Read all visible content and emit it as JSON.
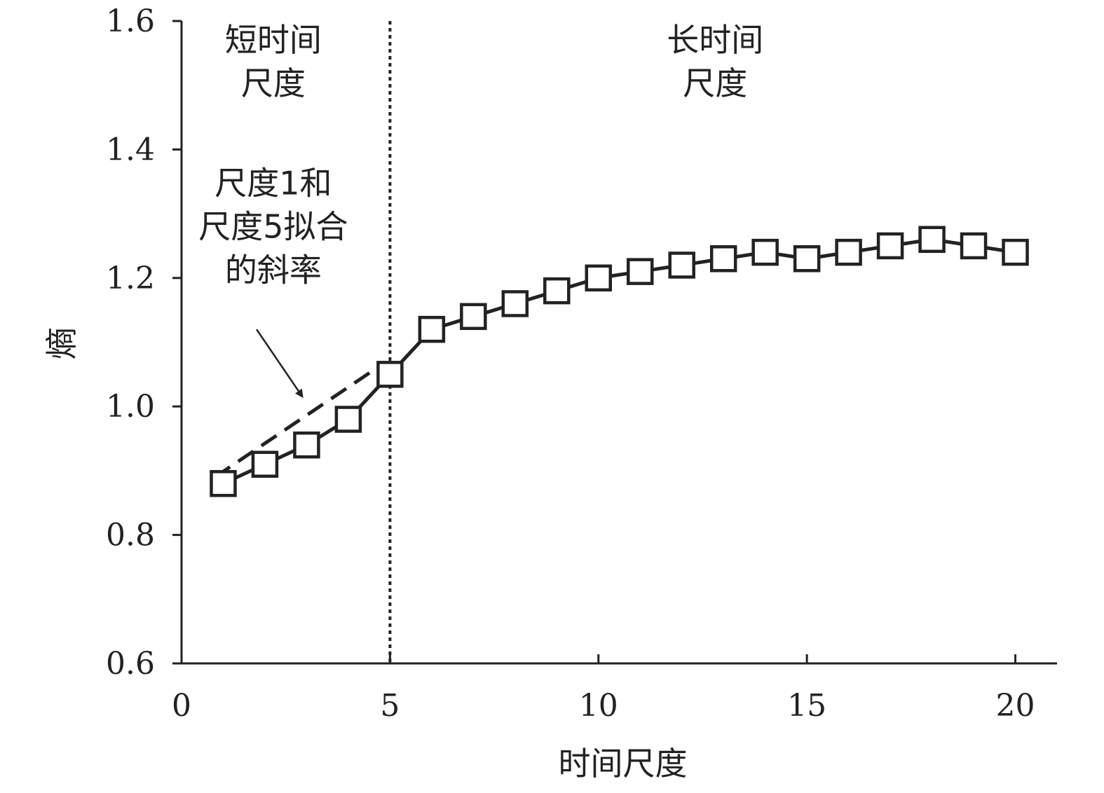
{
  "chart_data": {
    "type": "line",
    "title": "",
    "xlabel": "时间尺度",
    "ylabel": "熵",
    "xlim": [
      0,
      21
    ],
    "ylim": [
      0.6,
      1.6
    ],
    "xticks": [
      0,
      5,
      10,
      15,
      20
    ],
    "yticks": [
      "0.6",
      "0.8",
      "1.0",
      "1.2",
      "1.4",
      "1.6"
    ],
    "grid": false,
    "legend": "none",
    "series": [
      {
        "marker": "open-square",
        "x": [
          1,
          2,
          3,
          4,
          5,
          6,
          7,
          8,
          9,
          10,
          11,
          12,
          13,
          14,
          15,
          16,
          17,
          18,
          19,
          20
        ],
        "values": [
          0.88,
          0.91,
          0.94,
          0.98,
          1.05,
          1.12,
          1.14,
          1.16,
          1.18,
          1.2,
          1.21,
          1.22,
          1.23,
          1.24,
          1.23,
          1.24,
          1.25,
          1.26,
          1.25,
          1.24
        ]
      }
    ],
    "fit_line": {
      "style": "dashed",
      "x": [
        0.8,
        4.8
      ],
      "y": [
        0.89,
        1.065
      ]
    },
    "divider": {
      "x": 5,
      "style": "dotted"
    },
    "regions": [
      {
        "lines": [
          "短时间",
          "尺度"
        ],
        "x": 2.2,
        "y": 1.553
      },
      {
        "lines": [
          "长时间",
          "尺度"
        ],
        "x": 12.8,
        "y": 1.553
      }
    ],
    "annotation": {
      "lines": [
        "尺度1和",
        "尺度5拟合",
        "的斜率"
      ],
      "x": 2.2,
      "y": 1.33,
      "arrow_from": [
        1.8,
        1.12
      ],
      "arrow_to": [
        2.9,
        1.015
      ]
    }
  }
}
